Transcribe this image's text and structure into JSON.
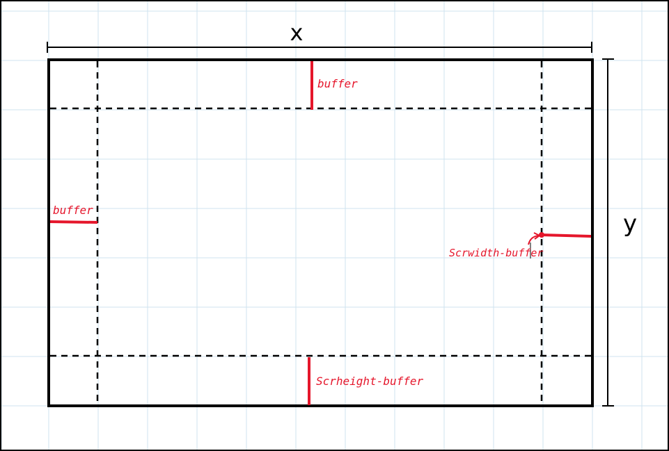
{
  "diagram": {
    "labels": {
      "x_axis": "x",
      "y_axis": "y",
      "top_buffer": "buffer",
      "left_buffer": "buffer",
      "right_buffer": "Scrwidth-buffer",
      "bottom_buffer": "Scrheight-buffer"
    },
    "colors": {
      "grid": "#cfe3ef",
      "outline": "#000000",
      "annotation": "#e5162b",
      "background": "#ffffff"
    }
  }
}
